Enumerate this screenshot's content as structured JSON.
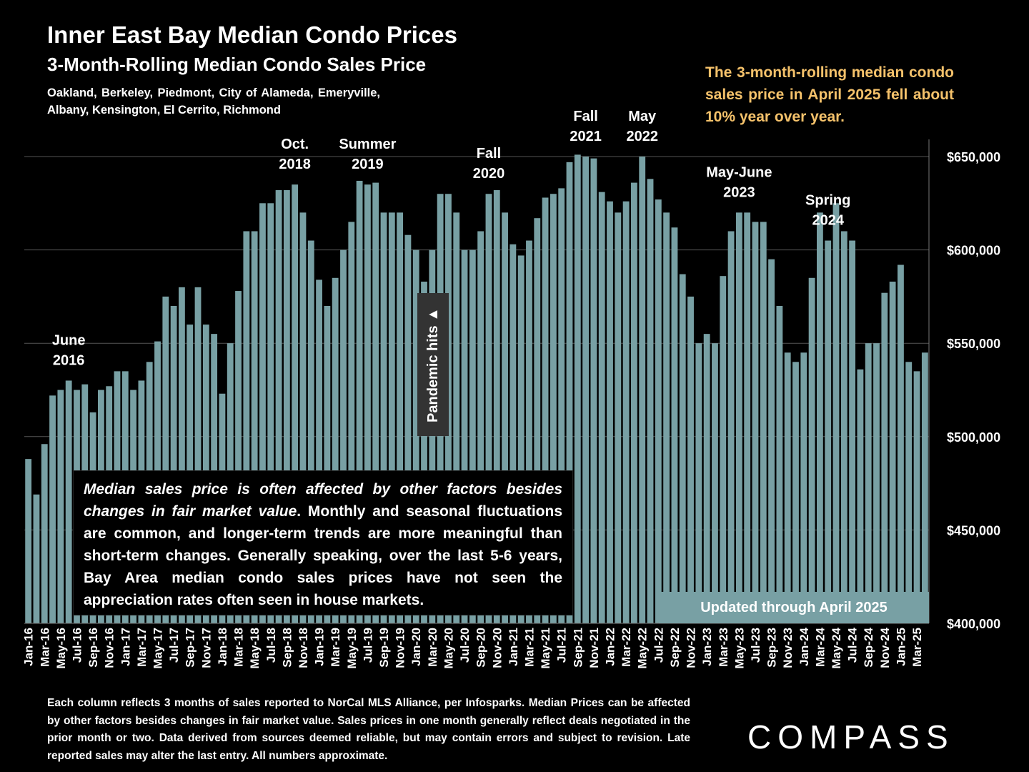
{
  "header": {
    "title": "Inner East Bay Median Condo Prices",
    "subtitle": "3-Month-Rolling Median Condo Sales Price",
    "region": "Oakland, Berkeley, Piedmont, City of Alameda, Emeryville, Albany, Kensington, El Cerrito, Richmond"
  },
  "callout": "The 3-month-rolling median condo sales price in April 2025 fell about 10% year over year.",
  "note": {
    "italic": "Median sales price is often affected by other factors besides changes in fair market value",
    "rest": ". Monthly and seasonal fluctuations are common, and longer-term trends are more meaningful than short-term changes. Generally speaking, over the last 5-6 years, Bay Area median condo sales prices have not seen the appreciation rates often seen in house markets."
  },
  "updated": "Updated through April 2025",
  "pandemic": "Pandemic hits ▲",
  "footer": "Each column reflects 3 months of sales reported to NorCal MLS Alliance, per Infosparks. Median Prices can be affected by other factors besides changes in fair market value. Sales prices in one month generally reflect deals negotiated in the prior month or two. Data derived from sources deemed reliable, but may contain errors and subject to revision. Late reported sales may alter the last entry. All numbers approximate.",
  "logo": "COMPASS",
  "colors": {
    "bar": "#78a0a4",
    "callout": "#f5c26b",
    "background": "#000000"
  },
  "chart_data": {
    "type": "bar",
    "title": "3-Month-Rolling Median Condo Sales Price",
    "ylim": [
      400000,
      650000
    ],
    "yticks": [
      400000,
      450000,
      500000,
      550000,
      600000,
      650000
    ],
    "ytick_labels": [
      "$400,000",
      "$450,000",
      "$500,000",
      "$550,000",
      "$600,000",
      "$650,000"
    ],
    "grid": true,
    "start": "2016-01",
    "xtick_labels": [
      "Jan-16",
      "Mar-16",
      "May-16",
      "Jul-16",
      "Sep-16",
      "Nov-16",
      "Jan-17",
      "Mar-17",
      "May-17",
      "Jul-17",
      "Sep-17",
      "Nov-17",
      "Jan-18",
      "Mar-18",
      "May-18",
      "Jul-18",
      "Sep-18",
      "Nov-18",
      "Jan-19",
      "Mar-19",
      "May-19",
      "Jul-19",
      "Sep-19",
      "Nov-19",
      "Jan-20",
      "Mar-20",
      "May-20",
      "Jul-20",
      "Sep-20",
      "Nov-20",
      "Jan-21",
      "Mar-21",
      "May-21",
      "Jul-21",
      "Sep-21",
      "Nov-21",
      "Jan-22",
      "Mar-22",
      "May-22",
      "Jul-22",
      "Sep-22",
      "Nov-22",
      "Jan-23",
      "Mar-23",
      "May-23",
      "Jul-23",
      "Sep-23",
      "Nov-23",
      "Jan-24",
      "Mar-24",
      "May-24",
      "Jul-24",
      "Sep-24",
      "Nov-24",
      "Jan-25",
      "Mar-25"
    ],
    "values": [
      488000,
      469000,
      496000,
      522000,
      525000,
      530000,
      525000,
      528000,
      513000,
      525000,
      527000,
      535000,
      535000,
      525000,
      530000,
      540000,
      551000,
      575000,
      570000,
      580000,
      560000,
      580000,
      560000,
      555000,
      523000,
      550000,
      578000,
      610000,
      610000,
      625000,
      625000,
      632000,
      632000,
      635000,
      620000,
      605000,
      584000,
      570000,
      585000,
      600000,
      615000,
      637000,
      635000,
      636000,
      620000,
      620000,
      620000,
      608000,
      600000,
      583000,
      600000,
      630000,
      630000,
      620000,
      600000,
      600000,
      610000,
      630000,
      632000,
      620000,
      603000,
      597000,
      605000,
      617000,
      628000,
      630000,
      633000,
      647000,
      651000,
      650000,
      649000,
      631000,
      626000,
      620000,
      626000,
      636000,
      650000,
      638000,
      627000,
      620000,
      612000,
      587000,
      575000,
      550000,
      555000,
      550000,
      586000,
      610000,
      620000,
      620000,
      615000,
      615000,
      595000,
      570000,
      545000,
      540000,
      545000,
      585000,
      620000,
      605000,
      625000,
      610000,
      605000,
      536000,
      550000,
      550000,
      577000,
      583000,
      592000,
      540000,
      535000,
      545000
    ],
    "annotations": [
      {
        "label": [
          "June",
          "2016"
        ],
        "month": 5
      },
      {
        "label": [
          "Oct.",
          "2018"
        ],
        "month": 33
      },
      {
        "label": [
          "Summer",
          "2019"
        ],
        "month": 42
      },
      {
        "label": [
          "Fall",
          "2020"
        ],
        "month": 57
      },
      {
        "label": [
          "Fall",
          "2021"
        ],
        "month": 69
      },
      {
        "label": [
          "May",
          "2022"
        ],
        "month": 76
      },
      {
        "label": [
          "May-June",
          "2023"
        ],
        "month": 88
      },
      {
        "label": [
          "Spring",
          "2024"
        ],
        "month": 99
      }
    ]
  }
}
